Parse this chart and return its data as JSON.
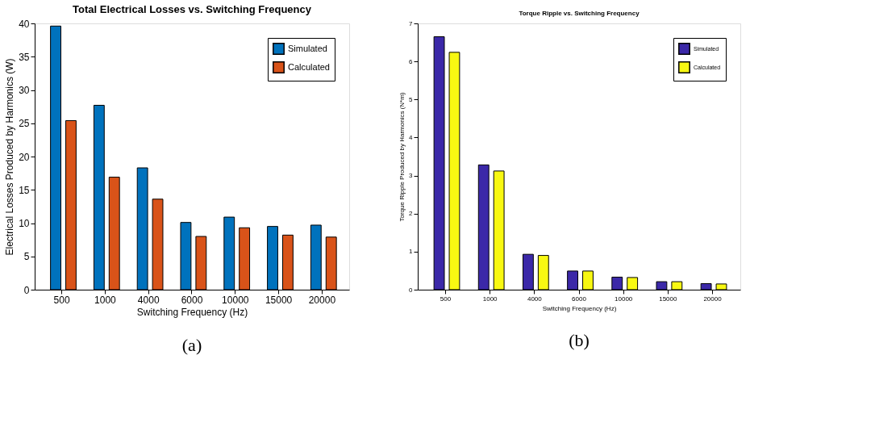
{
  "chart_data": [
    {
      "type": "bar",
      "title": "Total Electrical Losses vs. Switching Frequency",
      "xlabel": "Switching Frequency (Hz)",
      "ylabel": "Electrical Losses Produced by Harmonics (W)",
      "categories": [
        "500",
        "1000",
        "4000",
        "6000",
        "10000",
        "15000",
        "20000"
      ],
      "series": [
        {
          "name": "Simulated",
          "color": "#0072bd",
          "values": [
            39.6,
            27.7,
            18.3,
            10.1,
            10.9,
            9.5,
            9.7
          ]
        },
        {
          "name": "Calculated",
          "color": "#d95319",
          "values": [
            25.4,
            16.9,
            13.6,
            8.0,
            9.3,
            8.2,
            7.9
          ]
        }
      ],
      "ylim": [
        0,
        40
      ],
      "yticks": [
        0,
        5,
        10,
        15,
        20,
        25,
        30,
        35,
        40
      ],
      "legend": "top right",
      "grid": false,
      "annotations": [
        "(a)"
      ]
    },
    {
      "type": "bar",
      "title": "Torque Ripple vs. Switching Frequency",
      "xlabel": "Switching Frequency (Hz)",
      "ylabel": "Torque Ripple Produced by Harmonics (N*m)",
      "categories": [
        "500",
        "1000",
        "4000",
        "6000",
        "10000",
        "15000",
        "20000"
      ],
      "series": [
        {
          "name": "Simulated",
          "color": "#3b28a8",
          "values": [
            6.65,
            3.28,
            0.93,
            0.49,
            0.33,
            0.21,
            0.16
          ]
        },
        {
          "name": "Calculated",
          "color": "#f8f812",
          "values": [
            6.24,
            3.12,
            0.9,
            0.49,
            0.32,
            0.21,
            0.15
          ]
        }
      ],
      "ylim": [
        0,
        7
      ],
      "yticks": [
        0,
        1,
        2,
        3,
        4,
        5,
        6,
        7
      ],
      "legend": "top right",
      "grid": false,
      "annotations": [
        "(b)"
      ]
    }
  ]
}
